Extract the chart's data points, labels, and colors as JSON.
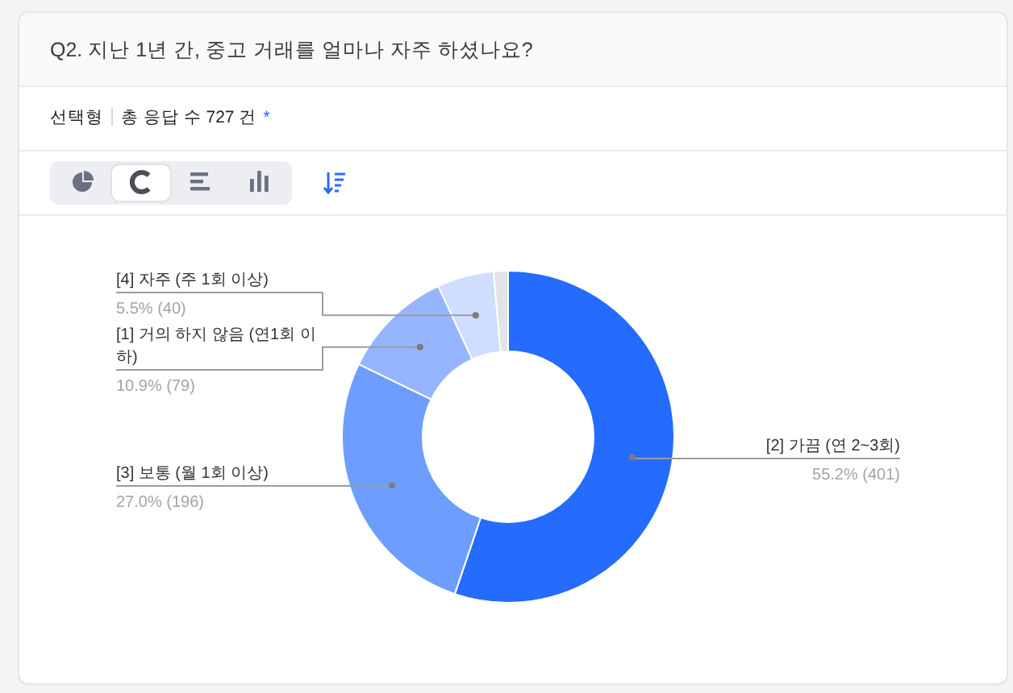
{
  "chart_data": {
    "type": "donut",
    "title": "Q2. 지난 1년 간, 중고 거래를 얼마나 자주 하셨나요?",
    "subtitle": "선택형",
    "annotations": [
      "총 응답 수 727 건",
      "*"
    ],
    "categories": [
      "[2] 가끔 (연 2~3회)",
      "[3] 보통 (월 1회 이상)",
      "[1] 거의 하지 않음 (연1회 이하)",
      "[4] 자주 (주 1회 이상)",
      null
    ],
    "values": [
      55.2,
      27.0,
      10.9,
      5.5,
      1.4
    ],
    "colors": [
      "#246bfe",
      "#6d9dff",
      "#95b6fe",
      "#cfddfe",
      "#e2e4e9"
    ],
    "value_labels": [
      "55.2% (401)",
      "27.0% (196)",
      "10.9% (79)",
      "5.5% (40)",
      null
    ]
  }
}
